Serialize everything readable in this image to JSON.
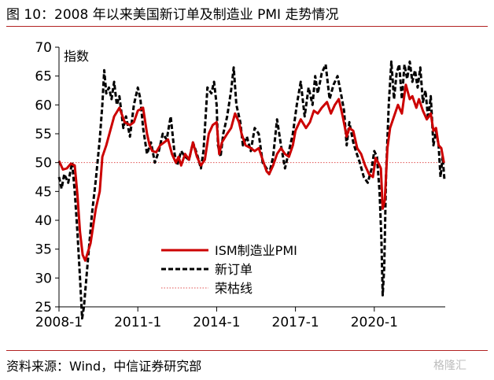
{
  "figure": {
    "title": "图 10：2008 年以来美国新订单及制造业 PMI 走势情况",
    "source": "资料来源：Wind，中信证券研究部",
    "watermark": "格隆汇"
  },
  "colors": {
    "pmi": "#cc0000",
    "new_orders": "#000000",
    "boom_bust": "#e05050",
    "rule": "#b22222"
  },
  "chart_data": {
    "type": "line",
    "ylabel": "指数",
    "ylim": [
      25,
      70
    ],
    "yticks": [
      25,
      30,
      35,
      40,
      45,
      50,
      55,
      60,
      65,
      70
    ],
    "xlim": [
      2008.0,
      2022.7
    ],
    "xticks": [
      {
        "value": 2008.0,
        "label": "2008-1"
      },
      {
        "value": 2011.0,
        "label": "2011-1"
      },
      {
        "value": 2014.0,
        "label": "2014-1"
      },
      {
        "value": 2017.0,
        "label": "2017-1"
      },
      {
        "value": 2020.0,
        "label": "2020-1"
      }
    ],
    "legend_position": "bottom-center",
    "reference_line": {
      "name": "荣枯线",
      "value": 50
    },
    "series": [
      {
        "name": "ISM制造业PMI",
        "style": "solid",
        "points": [
          [
            2008.0,
            50.3
          ],
          [
            2008.15,
            48.8
          ],
          [
            2008.3,
            49.0
          ],
          [
            2008.45,
            49.8
          ],
          [
            2008.6,
            49.5
          ],
          [
            2008.7,
            44.5
          ],
          [
            2008.8,
            38.0
          ],
          [
            2008.9,
            34.0
          ],
          [
            2009.0,
            33.0
          ],
          [
            2009.2,
            36.0
          ],
          [
            2009.4,
            42.0
          ],
          [
            2009.55,
            45.0
          ],
          [
            2009.65,
            51.0
          ],
          [
            2009.8,
            53.0
          ],
          [
            2009.95,
            55.5
          ],
          [
            2010.1,
            58.0
          ],
          [
            2010.3,
            59.5
          ],
          [
            2010.5,
            57.0
          ],
          [
            2010.7,
            56.5
          ],
          [
            2010.85,
            57.0
          ],
          [
            2011.0,
            59.0
          ],
          [
            2011.2,
            59.5
          ],
          [
            2011.35,
            55.0
          ],
          [
            2011.45,
            53.0
          ],
          [
            2011.55,
            52.0
          ],
          [
            2011.7,
            51.8
          ],
          [
            2011.85,
            53.0
          ],
          [
            2012.0,
            53.5
          ],
          [
            2012.15,
            54.0
          ],
          [
            2012.3,
            51.5
          ],
          [
            2012.45,
            50.0
          ],
          [
            2012.55,
            51.0
          ],
          [
            2012.65,
            49.5
          ],
          [
            2012.8,
            51.5
          ],
          [
            2012.95,
            50.5
          ],
          [
            2013.1,
            53.5
          ],
          [
            2013.25,
            51.0
          ],
          [
            2013.4,
            49.5
          ],
          [
            2013.55,
            50.5
          ],
          [
            2013.7,
            55.0
          ],
          [
            2013.85,
            56.5
          ],
          [
            2014.0,
            57.0
          ],
          [
            2014.1,
            51.5
          ],
          [
            2014.2,
            53.5
          ],
          [
            2014.4,
            55.0
          ],
          [
            2014.55,
            56.0
          ],
          [
            2014.7,
            58.5
          ],
          [
            2014.85,
            57.0
          ],
          [
            2014.95,
            55.0
          ],
          [
            2015.1,
            53.0
          ],
          [
            2015.3,
            52.5
          ],
          [
            2015.45,
            52.0
          ],
          [
            2015.6,
            52.5
          ],
          [
            2015.75,
            50.5
          ],
          [
            2015.9,
            48.5
          ],
          [
            2016.0,
            48.0
          ],
          [
            2016.15,
            49.5
          ],
          [
            2016.3,
            51.5
          ],
          [
            2016.45,
            52.5
          ],
          [
            2016.6,
            51.5
          ],
          [
            2016.75,
            51.0
          ],
          [
            2016.9,
            53.0
          ],
          [
            2017.0,
            55.5
          ],
          [
            2017.2,
            57.5
          ],
          [
            2017.4,
            56.0
          ],
          [
            2017.55,
            57.0
          ],
          [
            2017.7,
            59.0
          ],
          [
            2017.85,
            58.5
          ],
          [
            2018.0,
            59.5
          ],
          [
            2018.2,
            60.5
          ],
          [
            2018.35,
            58.5
          ],
          [
            2018.5,
            60.0
          ],
          [
            2018.65,
            61.0
          ],
          [
            2018.8,
            58.0
          ],
          [
            2018.95,
            54.5
          ],
          [
            2019.05,
            56.0
          ],
          [
            2019.2,
            55.5
          ],
          [
            2019.35,
            52.5
          ],
          [
            2019.5,
            51.5
          ],
          [
            2019.65,
            49.5
          ],
          [
            2019.8,
            48.0
          ],
          [
            2019.95,
            47.5
          ],
          [
            2020.05,
            50.8
          ],
          [
            2020.15,
            50.0
          ],
          [
            2020.25,
            49.0
          ],
          [
            2020.32,
            42.0
          ],
          [
            2020.4,
            43.5
          ],
          [
            2020.5,
            52.5
          ],
          [
            2020.6,
            56.0
          ],
          [
            2020.75,
            58.0
          ],
          [
            2020.9,
            60.0
          ],
          [
            2021.05,
            58.5
          ],
          [
            2021.2,
            63.5
          ],
          [
            2021.35,
            61.0
          ],
          [
            2021.45,
            61.5
          ],
          [
            2021.6,
            59.5
          ],
          [
            2021.7,
            61.0
          ],
          [
            2021.85,
            59.0
          ],
          [
            2022.0,
            57.5
          ],
          [
            2022.15,
            58.5
          ],
          [
            2022.25,
            55.5
          ],
          [
            2022.35,
            56.0
          ],
          [
            2022.45,
            53.0
          ],
          [
            2022.55,
            52.5
          ],
          [
            2022.65,
            50.0
          ]
        ]
      },
      {
        "name": "新订单",
        "style": "dashed",
        "points": [
          [
            2008.0,
            47.5
          ],
          [
            2008.1,
            45.5
          ],
          [
            2008.2,
            48.0
          ],
          [
            2008.35,
            46.5
          ],
          [
            2008.5,
            50.0
          ],
          [
            2008.6,
            45.0
          ],
          [
            2008.7,
            38.0
          ],
          [
            2008.8,
            30.0
          ],
          [
            2008.88,
            23.0
          ],
          [
            2008.95,
            25.0
          ],
          [
            2009.1,
            33.0
          ],
          [
            2009.25,
            41.0
          ],
          [
            2009.4,
            47.0
          ],
          [
            2009.55,
            54.0
          ],
          [
            2009.65,
            60.0
          ],
          [
            2009.72,
            66.0
          ],
          [
            2009.8,
            62.0
          ],
          [
            2009.9,
            63.0
          ],
          [
            2010.0,
            61.0
          ],
          [
            2010.1,
            64.0
          ],
          [
            2010.2,
            60.0
          ],
          [
            2010.3,
            61.5
          ],
          [
            2010.45,
            56.0
          ],
          [
            2010.55,
            58.0
          ],
          [
            2010.7,
            54.5
          ],
          [
            2010.85,
            60.0
          ],
          [
            2011.0,
            63.0
          ],
          [
            2011.1,
            61.0
          ],
          [
            2011.2,
            56.0
          ],
          [
            2011.35,
            51.5
          ],
          [
            2011.5,
            53.5
          ],
          [
            2011.65,
            50.0
          ],
          [
            2011.8,
            52.0
          ],
          [
            2011.95,
            55.0
          ],
          [
            2012.1,
            54.0
          ],
          [
            2012.25,
            58.0
          ],
          [
            2012.4,
            51.5
          ],
          [
            2012.5,
            49.5
          ],
          [
            2012.65,
            52.0
          ],
          [
            2012.8,
            51.0
          ],
          [
            2012.95,
            50.5
          ],
          [
            2013.1,
            53.5
          ],
          [
            2013.25,
            51.5
          ],
          [
            2013.4,
            49.0
          ],
          [
            2013.5,
            52.0
          ],
          [
            2013.65,
            63.0
          ],
          [
            2013.8,
            62.0
          ],
          [
            2013.9,
            64.0
          ],
          [
            2014.0,
            60.0
          ],
          [
            2014.05,
            53.0
          ],
          [
            2014.15,
            51.0
          ],
          [
            2014.25,
            55.0
          ],
          [
            2014.4,
            58.0
          ],
          [
            2014.55,
            62.5
          ],
          [
            2014.65,
            66.5
          ],
          [
            2014.75,
            60.0
          ],
          [
            2014.9,
            57.0
          ],
          [
            2015.0,
            53.0
          ],
          [
            2015.15,
            54.5
          ],
          [
            2015.3,
            52.0
          ],
          [
            2015.45,
            56.0
          ],
          [
            2015.6,
            55.0
          ],
          [
            2015.75,
            50.0
          ],
          [
            2015.9,
            49.0
          ],
          [
            2016.0,
            48.0
          ],
          [
            2016.15,
            51.0
          ],
          [
            2016.3,
            57.5
          ],
          [
            2016.45,
            53.0
          ],
          [
            2016.6,
            49.0
          ],
          [
            2016.75,
            52.0
          ],
          [
            2016.9,
            55.0
          ],
          [
            2017.05,
            60.0
          ],
          [
            2017.2,
            64.0
          ],
          [
            2017.35,
            58.0
          ],
          [
            2017.5,
            63.0
          ],
          [
            2017.65,
            60.0
          ],
          [
            2017.75,
            65.0
          ],
          [
            2017.85,
            62.0
          ],
          [
            2018.0,
            65.5
          ],
          [
            2018.15,
            67.0
          ],
          [
            2018.3,
            61.0
          ],
          [
            2018.45,
            63.5
          ],
          [
            2018.6,
            65.0
          ],
          [
            2018.75,
            61.5
          ],
          [
            2018.85,
            59.0
          ],
          [
            2018.95,
            53.0
          ],
          [
            2019.05,
            57.0
          ],
          [
            2019.2,
            53.5
          ],
          [
            2019.3,
            52.0
          ],
          [
            2019.45,
            50.0
          ],
          [
            2019.6,
            47.5
          ],
          [
            2019.75,
            46.5
          ],
          [
            2019.9,
            49.0
          ],
          [
            2020.0,
            52.0
          ],
          [
            2020.1,
            51.0
          ],
          [
            2020.2,
            45.0
          ],
          [
            2020.27,
            37.0
          ],
          [
            2020.32,
            27.0
          ],
          [
            2020.38,
            32.0
          ],
          [
            2020.45,
            48.0
          ],
          [
            2020.55,
            60.0
          ],
          [
            2020.65,
            67.5
          ],
          [
            2020.75,
            61.0
          ],
          [
            2020.85,
            65.5
          ],
          [
            2020.95,
            67.0
          ],
          [
            2021.05,
            61.0
          ],
          [
            2021.15,
            67.0
          ],
          [
            2021.25,
            64.5
          ],
          [
            2021.35,
            67.5
          ],
          [
            2021.45,
            64.0
          ],
          [
            2021.55,
            66.0
          ],
          [
            2021.65,
            63.0
          ],
          [
            2021.75,
            66.5
          ],
          [
            2021.85,
            60.5
          ],
          [
            2021.95,
            62.5
          ],
          [
            2022.05,
            57.5
          ],
          [
            2022.15,
            61.5
          ],
          [
            2022.25,
            53.0
          ],
          [
            2022.35,
            55.5
          ],
          [
            2022.45,
            53.0
          ],
          [
            2022.52,
            47.5
          ],
          [
            2022.6,
            51.0
          ],
          [
            2022.67,
            47.0
          ]
        ]
      }
    ]
  }
}
